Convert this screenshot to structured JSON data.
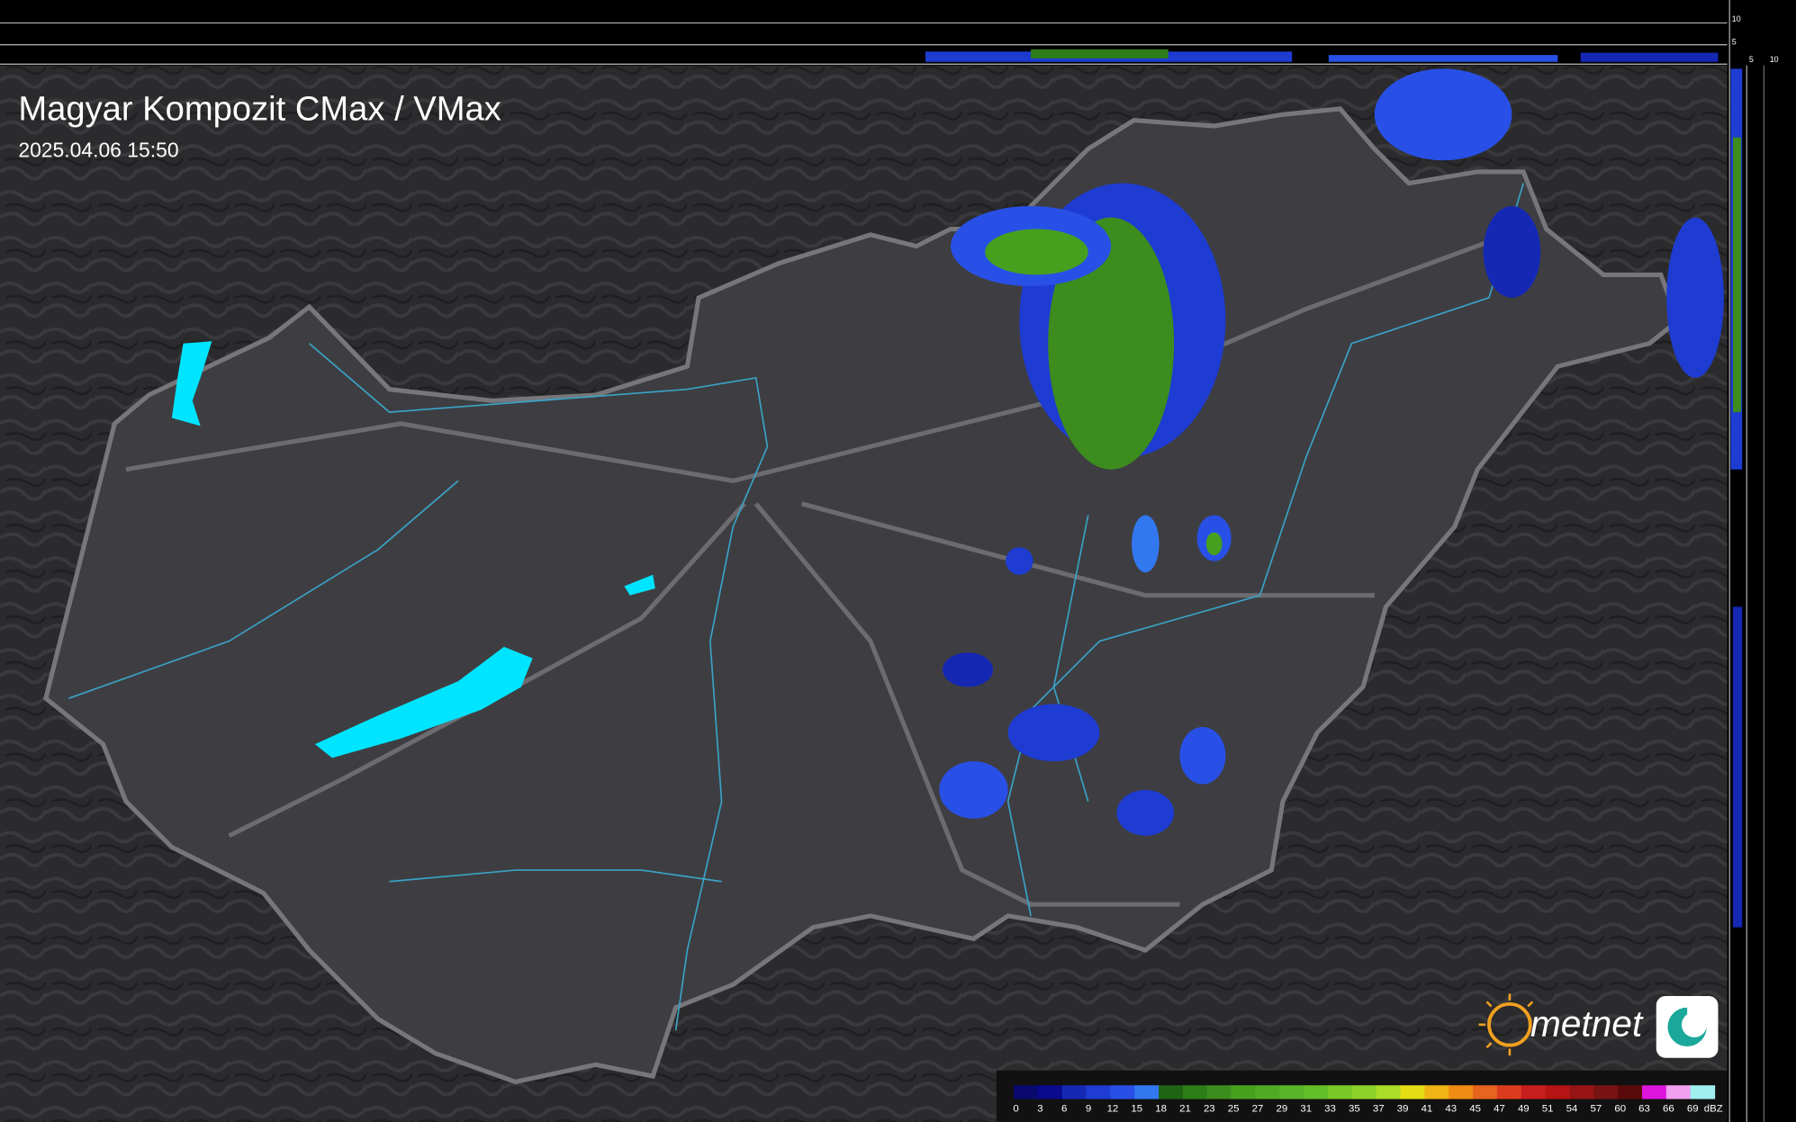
{
  "header": {
    "title": "Magyar Kompozit CMax / VMax",
    "timestamp": "2025.04.06 15:50"
  },
  "side_axes": {
    "top_ticks": [
      "10",
      "5"
    ],
    "right_ticks": [
      "5",
      "10"
    ]
  },
  "logo": {
    "text": "metnet"
  },
  "legend": {
    "unit": "dBZ",
    "labels": [
      0,
      3,
      6,
      9,
      12,
      15,
      18,
      21,
      23,
      25,
      27,
      29,
      31,
      33,
      35,
      37,
      39,
      41,
      43,
      45,
      47,
      49,
      51,
      54,
      57,
      60,
      63,
      66,
      69
    ],
    "colors": [
      "#0a0a6e",
      "#0a0a8c",
      "#1428b4",
      "#1e3cd2",
      "#2850e6",
      "#3278f0",
      "#1e6414",
      "#2d7d19",
      "#3c8c1e",
      "#46a01e",
      "#50aa23",
      "#5ab428",
      "#64be28",
      "#78c828",
      "#8cd228",
      "#aadc28",
      "#e6dc14",
      "#f0b414",
      "#f08c14",
      "#e6641e",
      "#dc3c1e",
      "#c81e1e",
      "#b41414",
      "#961414",
      "#781414",
      "#5a0a0a",
      "#dc14dc",
      "#f0a0f0",
      "#a0f0f0"
    ]
  }
}
